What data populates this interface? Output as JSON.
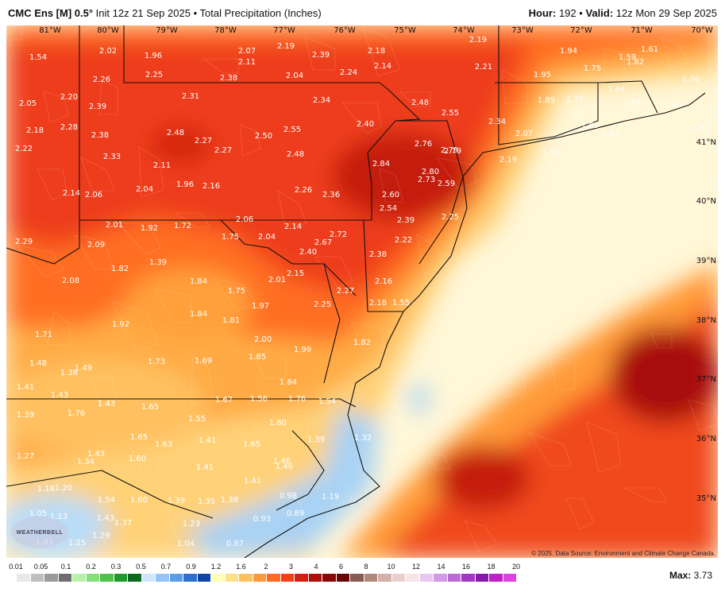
{
  "header": {
    "model": "CMC Ens [M] 0.5°",
    "init": "Init 12z 21 Sep 2025",
    "sep": "•",
    "product": "Total Precipitation (Inches)",
    "hour_label": "Hour:",
    "hour": "192",
    "valid_label": "Valid:",
    "valid": "12z Mon 29 Sep 2025"
  },
  "lon_labels": [
    "81°W",
    "80°W",
    "79°W",
    "78°W",
    "77°W",
    "76°W",
    "75°W",
    "74°W",
    "73°W",
    "72°W",
    "71°W",
    "70°W"
  ],
  "lat_labels": [
    "41°N",
    "40°N",
    "39°N",
    "38°N",
    "37°N",
    "36°N",
    "35°N"
  ],
  "values": [
    "1.54",
    "2.02",
    "1.96",
    "2.07",
    "2.11",
    "2.19",
    "2.39",
    "2.18",
    "2.19",
    "1.94",
    "1.61",
    "2.26",
    "2.25",
    "2.38",
    "2.04",
    "2.24",
    "2.14",
    "2.21",
    "1.75",
    "1.59",
    "1.82",
    "2.05",
    "2.20",
    "2.39",
    "2.31",
    "2.34",
    "2.48",
    "1.95",
    "1.36",
    "2.18",
    "2.28",
    "2.38",
    "2.48",
    "2.27",
    "2.50",
    "2.55",
    "2.40",
    "2.55",
    "1.89",
    "1.73",
    "1.44",
    "1.47",
    "1.44",
    "2.22",
    "2.33",
    "2.27",
    "2.48",
    "2.76",
    "2.79",
    "2.34",
    "1.63",
    "1.47",
    "1.42",
    "2.11",
    "2.84",
    "2.79",
    "2.07",
    "1.72",
    "2.14",
    "2.06",
    "2.04",
    "1.96",
    "2.16",
    "2.26",
    "2.36",
    "2.80",
    "2.73",
    "2.59",
    "2.19",
    "2.60",
    "2.54",
    "2.39",
    "2.25",
    "2.01",
    "1.92",
    "1.72",
    "1.75",
    "2.06",
    "2.04",
    "2.14",
    "2.72",
    "2.22",
    "2.29",
    "2.09",
    "1.39",
    "2.67",
    "2.40",
    "2.38",
    "1.82",
    "1.84",
    "2.15",
    "2.01",
    "2.16",
    "2.08",
    "1.75",
    "2.27",
    "1.97",
    "2.25",
    "2.18",
    "1.55",
    "1.84",
    "1.81",
    "1.92",
    "1.71",
    "2.00",
    "1.99",
    "1.82",
    "1.73",
    "1.69",
    "1.85",
    "1.48",
    "1.38",
    "1.49",
    "1.84",
    "1.41",
    "1.43",
    "1.56",
    "1.76",
    "1.54",
    "1.67",
    "1.43",
    "1.65",
    "1.39",
    "1.76",
    "1.55",
    "1.60",
    "1.39",
    "1.41",
    "1.46",
    "1.65",
    "1.63",
    "1.65",
    "1.27",
    "1.43",
    "1.60",
    "1.34",
    "1.41",
    "1.46",
    "1.41",
    "1.20",
    "1.18",
    "1.54",
    "1.60",
    "1.39",
    "1.35",
    "1.38",
    "0.98",
    "1.19",
    "1.05",
    "1.13",
    "1.43",
    "1.37",
    "1.23",
    "0.93",
    "0.89",
    "1.03",
    "1.25",
    "1.29",
    "1.04",
    "0.87",
    "1.32"
  ],
  "colorbar": {
    "ticks": [
      "0.01",
      "0.05",
      "0.1",
      "0.2",
      "0.3",
      "0.5",
      "0.7",
      "0.9",
      "1.2",
      "1.6",
      "2",
      "3",
      "4",
      "6",
      "8",
      "10",
      "12",
      "14",
      "16",
      "18",
      "20"
    ],
    "colors": [
      "#e8e8e8",
      "#bfbfbf",
      "#9a9a9a",
      "#6e6e6e",
      "#b7f2a8",
      "#84e07a",
      "#4fc24a",
      "#1e9a2a",
      "#0a6a1e",
      "#cfe6ff",
      "#93c4f5",
      "#5a9ee8",
      "#2a70d0",
      "#0e47a8",
      "#ffffb8",
      "#ffe08a",
      "#ffc060",
      "#ff9a3c",
      "#ff6a22",
      "#f2401a",
      "#d4200e",
      "#b00e0a",
      "#8a0808",
      "#6a0606",
      "#8a5a50",
      "#b08878",
      "#d4b0a8",
      "#ead0cc",
      "#f6e6e8",
      "#e8c8f0",
      "#d29ae6",
      "#bc6ad8",
      "#a238c6",
      "#8a16b0",
      "#c020c8",
      "#e040e0"
    ]
  },
  "max_label": "Max:",
  "max_value": "3.73",
  "credit": "© 2025. Data Source: Environment and Climate Change Canada.",
  "logo_text": "WEATHERBELL",
  "colors": {
    "ocean": "#fff7d8",
    "land_light": "#ffe9a0",
    "orange_light": "#ffc661",
    "orange": "#ff9b38",
    "red_orange": "#ff6e24",
    "red": "#ef3b1c",
    "dark_red": "#c41a0e",
    "deep_red": "#9e0e0a",
    "blue_light": "#c6e2fa",
    "blue": "#8ec2f0"
  }
}
